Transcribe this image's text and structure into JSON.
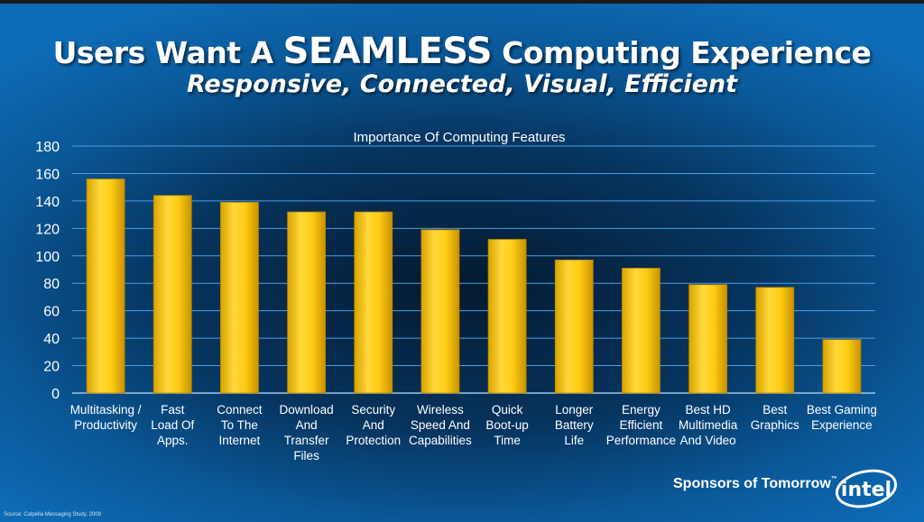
{
  "header": {
    "title_pre": "Users Want A",
    "title_emphasis": "SEAMLESS",
    "title_post": "Computing Experience",
    "subtitle": "Responsive, Connected, Visual, Efficient"
  },
  "chart_data": {
    "type": "bar",
    "title": "Importance Of Computing Features",
    "xlabel": "",
    "ylabel": "",
    "ylim": [
      0,
      180
    ],
    "yticks": [
      "0",
      "20",
      "40",
      "60",
      "80",
      "100",
      "120",
      "140",
      "160",
      "180"
    ],
    "grid": true,
    "bar_color": "#f5c400",
    "categories": [
      [
        "Multitasking /",
        "Productivity"
      ],
      [
        "Fast",
        "Load Of",
        "Apps."
      ],
      [
        "Connect",
        "To The",
        "Internet"
      ],
      [
        "Download",
        "And",
        "Transfer",
        "Files"
      ],
      [
        "Security",
        "And",
        "Protection"
      ],
      [
        "Wireless",
        "Speed And",
        "Capabilities"
      ],
      [
        "Quick",
        "Boot-up",
        "Time"
      ],
      [
        "Longer",
        "Battery",
        "Life"
      ],
      [
        "Energy",
        "Efficient",
        "Performance"
      ],
      [
        "Best HD",
        "Multimedia",
        "And Video"
      ],
      [
        "Best",
        "Graphics"
      ],
      [
        "Best Gaming",
        "Experience"
      ]
    ],
    "values": [
      156,
      144,
      139,
      132,
      132,
      119,
      112,
      97,
      91,
      79,
      77,
      39
    ]
  },
  "footer": {
    "source": "Source: Calpella Messaging Study, 2009",
    "sponsor": "Sponsors of Tomorrow",
    "sponsor_tm": "™",
    "logo_text": "intel"
  }
}
